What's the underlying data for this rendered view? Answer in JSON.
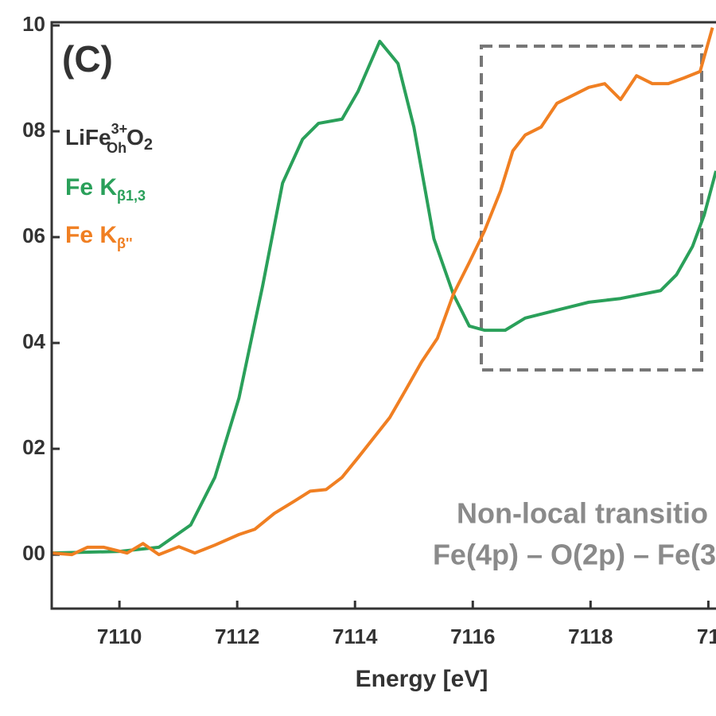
{
  "chart_data": {
    "type": "line",
    "panel_label": "(C)",
    "compound": {
      "base": "LiFe",
      "charge": "3+",
      "site": "Oh",
      "anion": "O",
      "count": "2"
    },
    "annotation": [
      "Non-local transitio",
      "Fe(4p) – O(2p) – Fe(3"
    ],
    "xlabel": "Energy [eV]",
    "xlim": [
      7108.85,
      7120.13
    ],
    "ylim": [
      -0.0102,
      0.1
    ],
    "xticks": [
      7110,
      7112,
      7114,
      7116,
      7118,
      {
        "value": 7120,
        "label": "71"
      }
    ],
    "yticks": [
      {
        "value": 0.1,
        "label": "10"
      },
      {
        "value": 0.08,
        "label": "08"
      },
      {
        "value": 0.06,
        "label": "06"
      },
      {
        "value": 0.04,
        "label": "04"
      },
      {
        "value": 0.02,
        "label": "02"
      },
      {
        "value": 0.0,
        "label": "00"
      }
    ],
    "series": [
      {
        "name": "Fe K",
        "subscript": "β1,3",
        "color": "#2aa05a",
        "x": [
          7108.85,
          7110.0,
          7110.67,
          7111.21,
          7111.62,
          7112.03,
          7112.43,
          7112.77,
          7113.11,
          7113.38,
          7113.78,
          7114.05,
          7114.42,
          7114.73,
          7115.0,
          7115.34,
          7115.67,
          7115.94,
          7116.2,
          7116.55,
          7116.89,
          7117.43,
          7117.97,
          7118.51,
          7119.19,
          7119.46,
          7119.73,
          7119.93,
          7120.13
        ],
        "values": [
          0.0003,
          0.0006,
          0.0014,
          0.0056,
          0.0146,
          0.0296,
          0.0507,
          0.0702,
          0.0785,
          0.0815,
          0.0823,
          0.0875,
          0.097,
          0.0928,
          0.0808,
          0.0597,
          0.0492,
          0.0432,
          0.0424,
          0.0424,
          0.0447,
          0.0462,
          0.0477,
          0.0484,
          0.0499,
          0.0529,
          0.0582,
          0.0642,
          0.0725
        ]
      },
      {
        "name": "Fe K",
        "subscript": "β''",
        "color": "#f07f22",
        "x": [
          7108.85,
          7109.19,
          7109.46,
          7109.73,
          7110.13,
          7110.4,
          7110.67,
          7111.01,
          7111.28,
          7111.62,
          7112.03,
          7112.3,
          7112.63,
          7112.97,
          7113.24,
          7113.51,
          7113.78,
          7114.05,
          7114.32,
          7114.59,
          7114.86,
          7115.13,
          7115.4,
          7115.67,
          7115.94,
          7116.2,
          7116.47,
          7116.68,
          7116.89,
          7117.16,
          7117.43,
          7117.7,
          7117.97,
          7118.24,
          7118.51,
          7118.78,
          7119.05,
          7119.32,
          7119.59,
          7119.86,
          7120.07
        ],
        "values": [
          0.0003,
          0.0,
          0.0014,
          0.0014,
          0.0003,
          0.0021,
          0.0,
          0.0015,
          0.0003,
          0.0018,
          0.0038,
          0.0048,
          0.0078,
          0.0101,
          0.012,
          0.0123,
          0.0146,
          0.0183,
          0.0221,
          0.0259,
          0.0311,
          0.0364,
          0.0409,
          0.0492,
          0.0552,
          0.0612,
          0.0687,
          0.0763,
          0.0793,
          0.0808,
          0.0853,
          0.0868,
          0.0883,
          0.089,
          0.086,
          0.0905,
          0.089,
          0.089,
          0.0901,
          0.0913,
          0.0996
        ]
      }
    ]
  }
}
